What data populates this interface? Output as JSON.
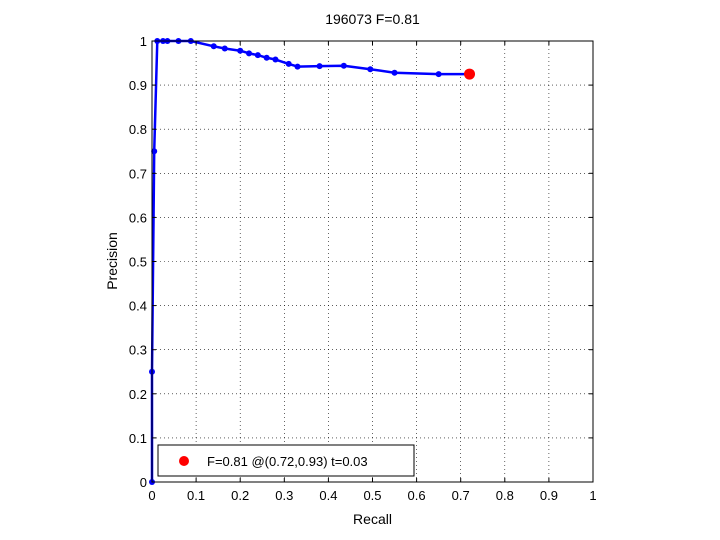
{
  "chart_data": {
    "type": "line",
    "title": "196073 F=0.81",
    "xlabel": "Recall",
    "ylabel": "Precision",
    "xlim": [
      0,
      1
    ],
    "ylim": [
      0,
      1
    ],
    "xticks": [
      0,
      0.1,
      0.2,
      0.3,
      0.4,
      0.5,
      0.6,
      0.7,
      0.8,
      0.9,
      1
    ],
    "yticks": [
      0,
      0.1,
      0.2,
      0.3,
      0.4,
      0.5,
      0.6,
      0.7,
      0.8,
      0.9,
      1
    ],
    "xtick_labels": [
      "0",
      "0.1",
      "0.2",
      "0.3",
      "0.4",
      "0.5",
      "0.6",
      "0.7",
      "0.8",
      "0.9",
      "1"
    ],
    "ytick_labels": [
      "0",
      "0.1",
      "0.2",
      "0.3",
      "0.4",
      "0.5",
      "0.6",
      "0.7",
      "0.8",
      "0.9",
      "1"
    ],
    "grid": true,
    "series": [
      {
        "color": "#0000ff",
        "x": [
          0,
          0,
          0.005,
          0.012,
          0.025,
          0.035,
          0.06,
          0.088,
          0.14,
          0.165,
          0.2,
          0.22,
          0.24,
          0.26,
          0.28,
          0.31,
          0.33,
          0.38,
          0.435,
          0.495,
          0.55,
          0.65,
          0.72
        ],
        "y": [
          0,
          0.25,
          0.75,
          1.0,
          1.0,
          1.0,
          1.0,
          1.0,
          0.988,
          0.983,
          0.978,
          0.972,
          0.968,
          0.962,
          0.958,
          0.948,
          0.942,
          0.943,
          0.944,
          0.936,
          0.928,
          0.925,
          0.925
        ]
      }
    ],
    "highlight_point": {
      "x": 0.72,
      "y": 0.925,
      "color": "#ff0000"
    },
    "legend": {
      "placement": "bottom-left",
      "label": "F=0.81 @(0.72,0.93) t=0.03"
    }
  }
}
